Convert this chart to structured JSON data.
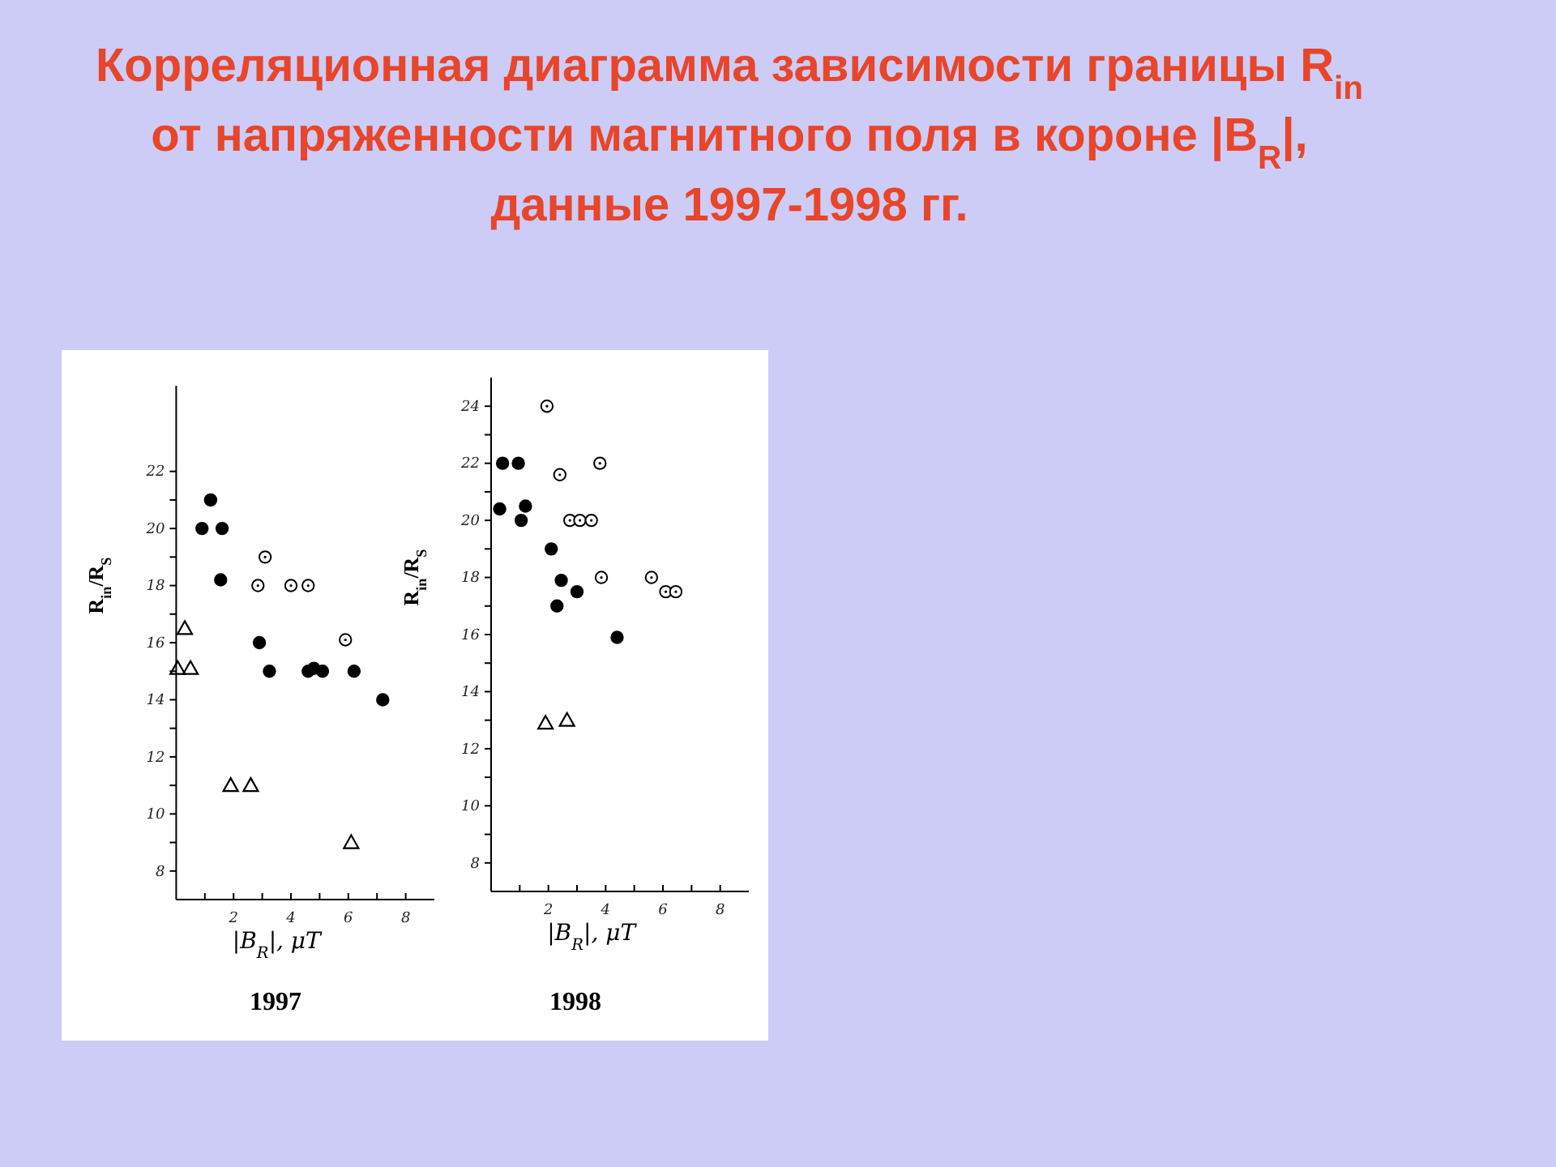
{
  "chart_data": [
    {
      "type": "scatter",
      "title": "Корреляционная диаграмма зависимости границы R$_{in}$ от напряженности магнитного поля в короне |B$_{R}$|, данные 1997-1998 гг.",
      "subtitle": "1997",
      "xlabel": "|B$_{R}$|, μT",
      "ylabel": "R$_{in}$/R$_{S}$",
      "xlim": [
        0,
        9
      ],
      "ylim": [
        7,
        25
      ],
      "xticks": [
        {
          "value": 1,
          "label": null
        },
        2,
        {
          "value": 3,
          "label": null
        },
        4,
        {
          "value": 5,
          "label": null
        },
        6,
        {
          "value": 7,
          "label": null
        },
        8
      ],
      "yticks": [
        8,
        {
          "value": 9,
          "label": null
        },
        10,
        {
          "value": 11,
          "label": null
        },
        12,
        {
          "value": 13,
          "label": null
        },
        14,
        {
          "value": 15,
          "label": null
        },
        16,
        {
          "value": 17,
          "label": null
        },
        18,
        {
          "value": 19,
          "label": null
        },
        20,
        {
          "value": 21,
          "label": null
        },
        22
      ],
      "grid": false,
      "series": [
        {
          "color": "#000000",
          "marker": "circle",
          "x": [
            0.9,
            1.2,
            1.6,
            1.55,
            2.9,
            3.25,
            4.6,
            4.8,
            5.1,
            6.2,
            7.2
          ],
          "values": [
            20,
            21,
            20,
            18.2,
            16,
            15,
            15,
            15.1,
            15,
            15,
            14
          ]
        },
        {
          "color": "#000000",
          "marker": "circle",
          "x": [
            2.85,
            3.1,
            4.0,
            4.6,
            5.9
          ],
          "values": [
            18,
            19,
            18,
            18,
            16.1
          ]
        },
        {
          "color": "#000000",
          "marker": "triangle",
          "x": [
            0.3,
            0.05,
            0.5,
            1.9,
            2.6,
            6.1
          ],
          "values": [
            16.5,
            15.1,
            15.1,
            11,
            11,
            9
          ]
        }
      ]
    },
    {
      "type": "scatter",
      "subtitle": "1998",
      "xlabel": "|B$_{R}$|, μT",
      "ylabel": "R$_{in}$/R$_{S}$",
      "xlim": [
        0,
        9
      ],
      "ylim": [
        7,
        25
      ],
      "xticks": [
        {
          "value": 1,
          "label": null
        },
        2,
        {
          "value": 3,
          "label": null
        },
        4,
        {
          "value": 5,
          "label": null
        },
        6,
        {
          "value": 7,
          "label": null
        },
        8
      ],
      "yticks": [
        8,
        {
          "value": 9,
          "label": null
        },
        10,
        {
          "value": 11,
          "label": null
        },
        12,
        {
          "value": 13,
          "label": null
        },
        14,
        {
          "value": 15,
          "label": null
        },
        16,
        {
          "value": 17,
          "label": null
        },
        18,
        {
          "value": 19,
          "label": null
        },
        20,
        {
          "value": 21,
          "label": null
        },
        22,
        {
          "value": 23,
          "label": null
        },
        24
      ],
      "grid": false,
      "series": [
        {
          "color": "#000000",
          "marker": "circle",
          "x": [
            0.3,
            0.4,
            0.95,
            1.05,
            1.2,
            2.1,
            2.45,
            2.3,
            3.0,
            4.4
          ],
          "values": [
            20.4,
            22,
            22,
            20,
            20.5,
            19,
            17.9,
            17,
            17.5,
            15.9
          ]
        },
        {
          "color": "#000000",
          "marker": "circle",
          "x": [
            1.95,
            2.4,
            3.8,
            2.75,
            3.1,
            3.5,
            3.85,
            5.6,
            6.1,
            6.45
          ],
          "values": [
            24,
            21.6,
            22,
            20,
            20,
            20,
            18,
            18,
            17.5,
            17.5
          ]
        },
        {
          "color": "#000000",
          "marker": "triangle",
          "x": [
            1.9,
            2.65
          ],
          "values": [
            12.9,
            13
          ]
        }
      ]
    }
  ]
}
